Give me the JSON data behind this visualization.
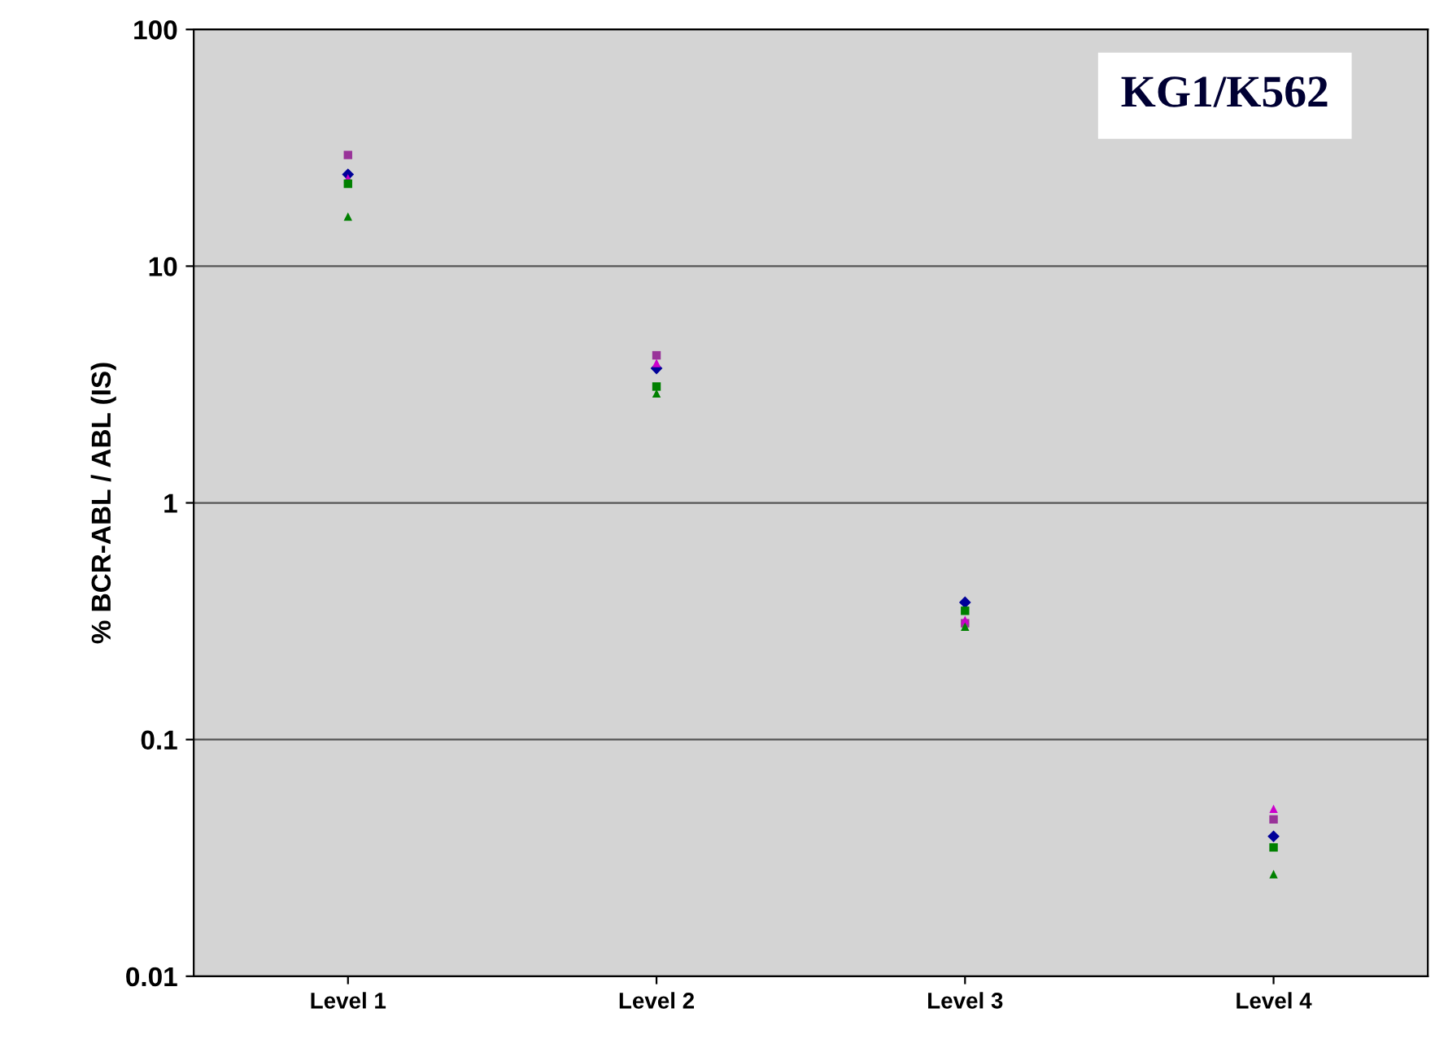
{
  "chart_data": {
    "type": "scatter",
    "ylabel": "% BCR-ABL / ABL (IS)",
    "annotations": [
      "KG1/K562"
    ],
    "categories": [
      "Level 1",
      "Level 2",
      "Level 3",
      "Level 4"
    ],
    "log": "y",
    "ylim": [
      0.01,
      100
    ],
    "yticks": [
      {
        "value": 0.01,
        "label": "0.01"
      },
      {
        "value": 0.1,
        "label": "0.1"
      },
      {
        "value": 1,
        "label": "1"
      },
      {
        "value": 10,
        "label": "10"
      },
      {
        "value": 100,
        "label": "100"
      }
    ],
    "grid": "y",
    "legend": false,
    "series": [
      {
        "color": "#993399",
        "marker": "square",
        "values": [
          29.5,
          4.2,
          0.31,
          0.046
        ]
      },
      {
        "color": "#000099",
        "marker": "diamond",
        "values": [
          24.4,
          3.7,
          0.38,
          0.039
        ]
      },
      {
        "color": "#cc00cc",
        "marker": "triangle",
        "values": [
          23.5,
          3.9,
          0.32,
          0.051
        ]
      },
      {
        "color": "#008000",
        "marker": "square",
        "values": [
          22.3,
          3.1,
          0.35,
          0.035
        ]
      },
      {
        "color": "#008000",
        "marker": "triangle",
        "values": [
          16.2,
          2.9,
          0.3,
          0.027
        ]
      }
    ]
  }
}
